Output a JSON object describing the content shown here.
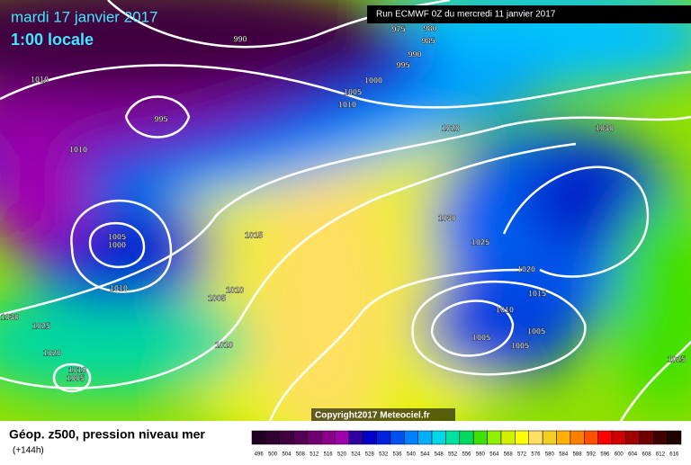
{
  "header": {
    "date": "mardi 17 janvier 2017",
    "time": "1:00 locale",
    "run": "Run ECMWF 0Z du mercredi 11 janvier 2017",
    "copyright": "Copyright2017 Meteociel.fr"
  },
  "footer": {
    "title": "Géop. z500, pression niveau mer",
    "lead": "(+144h)"
  },
  "isobar_labels": [
    990,
    975,
    980,
    985,
    990,
    995,
    1000,
    1005,
    1010,
    1010,
    995,
    1010,
    1020,
    1030,
    1030,
    1025,
    1015,
    1005,
    1000,
    1010,
    1010,
    1005,
    1020,
    1015,
    1010,
    1005,
    1005,
    1005,
    1030,
    1025,
    1020,
    1010,
    1005,
    1010,
    1025
  ],
  "scale": {
    "values": [
      496,
      500,
      504,
      508,
      512,
      516,
      520,
      524,
      528,
      532,
      536,
      540,
      544,
      548,
      552,
      556,
      560,
      564,
      568,
      572,
      576,
      580,
      584,
      588,
      592,
      596,
      600,
      604,
      608,
      612,
      616
    ],
    "colors": [
      "#200020",
      "#300030",
      "#400040",
      "#550055",
      "#700070",
      "#8a008a",
      "#a000b0",
      "#3000a0",
      "#0000c8",
      "#0020e0",
      "#0050f0",
      "#0080ff",
      "#00b0ff",
      "#00d8e8",
      "#00e0a0",
      "#00d860",
      "#40e000",
      "#90f000",
      "#d0f000",
      "#ffff00",
      "#ffe060",
      "#f0d020",
      "#ffb000",
      "#ff8000",
      "#ff5000",
      "#ff0000",
      "#d00000",
      "#a00000",
      "#700000",
      "#400000",
      "#200000"
    ]
  }
}
